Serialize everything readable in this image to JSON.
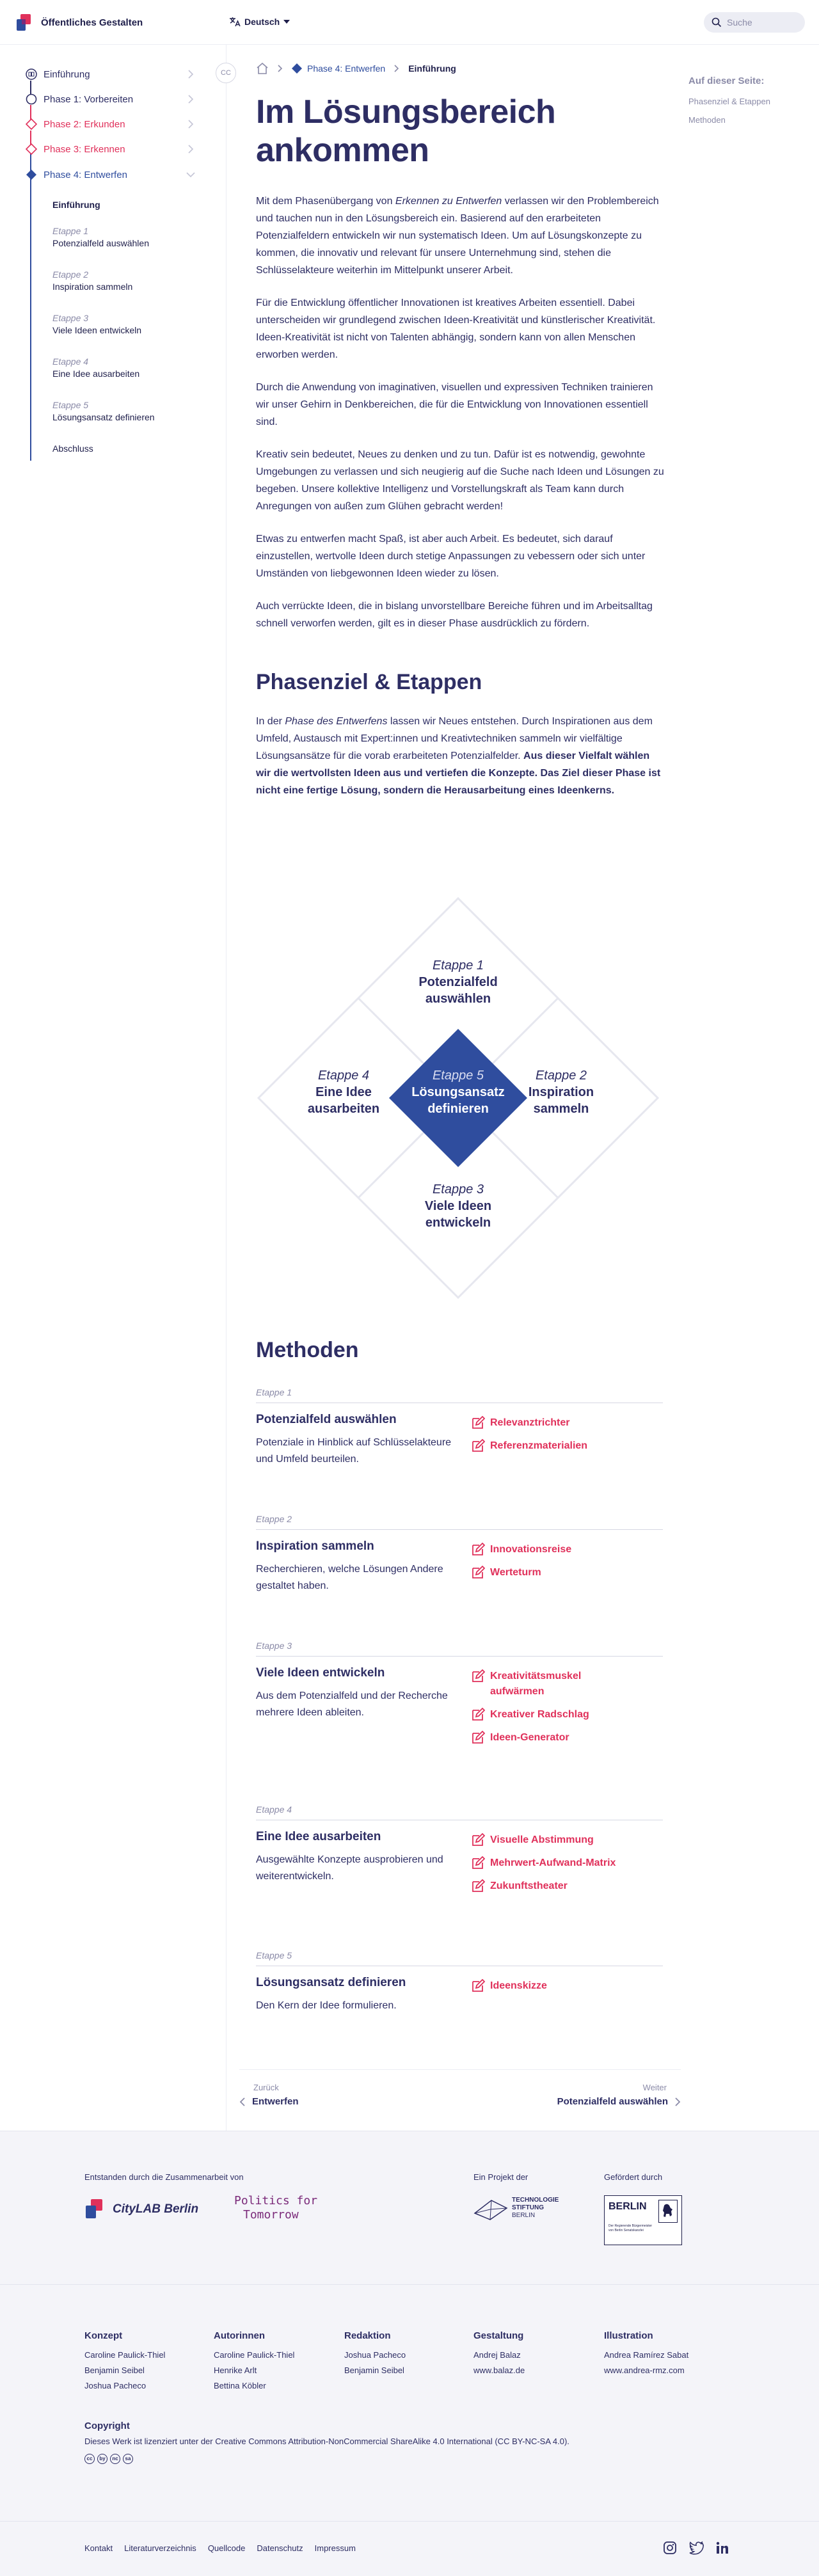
{
  "header": {
    "title": "Öffentliches Gestalten",
    "language": "Deutsch",
    "search_placeholder": "Suche"
  },
  "sidebar": {
    "collapse_label": "CC",
    "phases": [
      {
        "label": "Einführung",
        "color": "#2e2e64"
      },
      {
        "label": "Phase 1: Vorbereiten",
        "color": "#2e2e64"
      },
      {
        "label": "Phase 2: Erkunden",
        "color": "#e0315b"
      },
      {
        "label": "Phase 3: Erkennen",
        "color": "#e0315b"
      },
      {
        "label": "Phase 4: Entwerfen",
        "color": "#2f4d9e"
      }
    ],
    "sub_intro": "Einführung",
    "sub_items": [
      {
        "etappe": "Etappe 1",
        "name": "Potenzialfeld auswählen"
      },
      {
        "etappe": "Etappe 2",
        "name": "Inspiration sammeln"
      },
      {
        "etappe": "Etappe 3",
        "name": "Viele Ideen entwickeln"
      },
      {
        "etappe": "Etappe 4",
        "name": "Eine Idee ausarbeiten"
      },
      {
        "etappe": "Etappe 5",
        "name": "Lösungsansatz definieren"
      }
    ],
    "sub_outro": "Abschluss"
  },
  "breadcrumb": {
    "phase": "Phase 4: Entwerfen",
    "current": "Einführung"
  },
  "toc": {
    "title": "Auf dieser Seite:",
    "items": [
      "Phasenziel & Etappen",
      "Methoden"
    ]
  },
  "main": {
    "title": "Im Lösungsbereich ankommen",
    "p1_a": "Mit dem Phasenübergang von ",
    "p1_em": "Erkennen zu Entwerfen",
    "p1_b": " verlassen wir den Problembereich und tauchen nun in den Lösungsbereich ein. Basierend auf den erarbeiteten Potenzialfeldern entwickeln wir nun systematisch Ideen. Um auf Lösungskonzepte zu kommen, die innovativ und relevant für unsere Unternehmung sind, stehen die Schlüsselakteure weiterhin im Mittelpunkt unserer Arbeit.",
    "p2": "Für die Entwicklung öffentlicher Innovationen ist kreatives Arbeiten essentiell. Dabei unterscheiden wir grundlegend zwischen Ideen-Kreativität und künstlerischer Kreativität. Ideen-Kreativität ist nicht von Talenten abhängig, sondern kann von allen Menschen erworben werden.",
    "p3": "Durch die Anwendung von imaginativen, visuellen und expressiven Techniken trainieren wir unser Gehirn in Denkbereichen, die für die Entwicklung von Innovationen essentiell sind.",
    "p4": "Kreativ sein bedeutet, Neues zu denken und zu tun. Dafür ist es notwendig, gewohnte Umgebungen zu verlassen und sich neugierig auf die Suche nach Ideen und Lösungen zu begeben. Unsere kollektive Intelligenz und Vorstellungskraft als Team kann durch Anregungen von außen zum Glühen gebracht werden!",
    "p5": "Etwas zu entwerfen macht Spaß, ist aber auch Arbeit. Es bedeutet, sich darauf einzustellen, wertvolle Ideen durch stetige Anpassungen zu vebessern oder sich unter Umständen von liebgewonnen Ideen wieder zu lösen.",
    "p6": "Auch verrückte Ideen, die in bislang unvorstellbare Bereiche führen und im Arbeitsalltag schnell verworfen werden, gilt es in dieser Phase ausdrücklich zu fördern.",
    "h2": "Phasenziel & Etappen",
    "p7_a": "In der ",
    "p7_em": "Phase des Entwerfens",
    "p7_b": " lassen wir Neues entstehen. Durch Inspirationen aus dem Umfeld, Austausch mit Expert:innen und Kreativtechniken sammeln wir vielfältige Lösungsansätze für die vorab erarbeiteten Potenzialfelder. ",
    "p7_strong": "Aus dieser Vielfalt wählen wir die wertvollsten Ideen aus und vertiefen die Konzepte. Das Ziel dieser Phase ist nicht eine fertige Lösung, sondern die Herausarbeitung eines Ideenkerns."
  },
  "diamond": {
    "top": {
      "etappe": "Etappe 1",
      "name": "Potenzialfeld auswählen"
    },
    "right": {
      "etappe": "Etappe 2",
      "name": "Inspiration sammeln"
    },
    "bottom": {
      "etappe": "Etappe 3",
      "name": "Viele Ideen entwickeln"
    },
    "left": {
      "etappe": "Etappe 4",
      "name": "Eine Idee ausarbeiten"
    },
    "center": {
      "etappe": "Etappe 5",
      "name": "Lösungsansatz definieren"
    },
    "center_color": "#2f4d9e"
  },
  "methods": {
    "title": "Methoden",
    "items": [
      {
        "etappe": "Etappe 1",
        "title": "Potenzialfeld auswählen",
        "desc": "Potenziale in Hinblick auf Schlüsselakteure und Umfeld beurteilen.",
        "links": [
          "Relevanztrichter",
          "Referenzmaterialien"
        ]
      },
      {
        "etappe": "Etappe 2",
        "title": "Inspiration sammeln",
        "desc": "Recherchieren, welche Lösungen Andere gestaltet haben.",
        "links": [
          "Innovationsreise",
          "Werteturm"
        ]
      },
      {
        "etappe": "Etappe 3",
        "title": "Viele Ideen entwickeln",
        "desc": "Aus dem Potenzialfeld und der Recherche mehrere Ideen ableiten.",
        "links": [
          "Kreativitätsmuskel aufwärmen",
          "Kreativer Radschlag",
          "Ideen-Generator"
        ]
      },
      {
        "etappe": "Etappe 4",
        "title": "Eine Idee ausarbeiten",
        "desc": "Ausgewählte Konzepte ausprobieren und weiterentwickeln.",
        "links": [
          "Visuelle Abstimmung",
          "Mehrwert-Aufwand-Matrix",
          "Zukunftstheater"
        ]
      },
      {
        "etappe": "Etappe 5",
        "title": "Lösungsansatz definieren",
        "desc": "Den Kern der Idee formulieren.",
        "links": [
          "Ideenskizze"
        ]
      }
    ]
  },
  "pager": {
    "prev_small": "Zurück",
    "prev_big": "Entwerfen",
    "next_small": "Weiter",
    "next_big": "Potenzialfeld auswählen"
  },
  "partners": {
    "created_label": "Entstanden durch die Zusammenarbeit von",
    "project_label": "Ein Projekt der",
    "funded_label": "Gefördert durch",
    "citylab": "CityLAB Berlin",
    "pft_line1": "Politics for",
    "pft_line2": "Tomorrow",
    "tsb_line1": "TECHNOLOGIE",
    "tsb_line2": "STIFTUNG",
    "tsb_line3": "BERLIN",
    "berlin": "BERLIN",
    "berlin_sub": "Der Regierende Bürgermeister von Berlin Senatskanzlei"
  },
  "credits": {
    "columns": [
      {
        "title": "Konzept",
        "names": [
          "Caroline Paulick-Thiel",
          "Benjamin Seibel",
          "Joshua Pacheco"
        ]
      },
      {
        "title": "Autorinnen",
        "names": [
          "Caroline Paulick-Thiel",
          "Henrike Arlt",
          "Bettina Köbler"
        ]
      },
      {
        "title": "Redaktion",
        "names": [
          "Joshua Pacheco",
          "Benjamin Seibel"
        ]
      },
      {
        "title": "Gestaltung",
        "names": [
          "Andrej Balaz",
          "www.balaz.de"
        ]
      },
      {
        "title": "Illustration",
        "names": [
          "Andrea Ramírez Sabat",
          "www.andrea-rmz.com"
        ]
      }
    ],
    "copyright_title": "Copyright",
    "copyright_text": "Dieses Werk ist lizenziert unter der Creative Commons Attribution-NonCommercial ShareAlike 4.0 International (CC BY-NC-SA 4.0).",
    "cc_icons": [
      "cc",
      "by",
      "nc",
      "sa"
    ]
  },
  "footer": {
    "links": [
      "Kontakt",
      "Literaturverzeichnis",
      "Quellcode",
      "Datenschutz",
      "Impressum"
    ]
  },
  "colors": {
    "navy": "#2e2e64",
    "blue": "#2f4d9e",
    "pink": "#e0315b",
    "grey": "#8b8ba8"
  }
}
